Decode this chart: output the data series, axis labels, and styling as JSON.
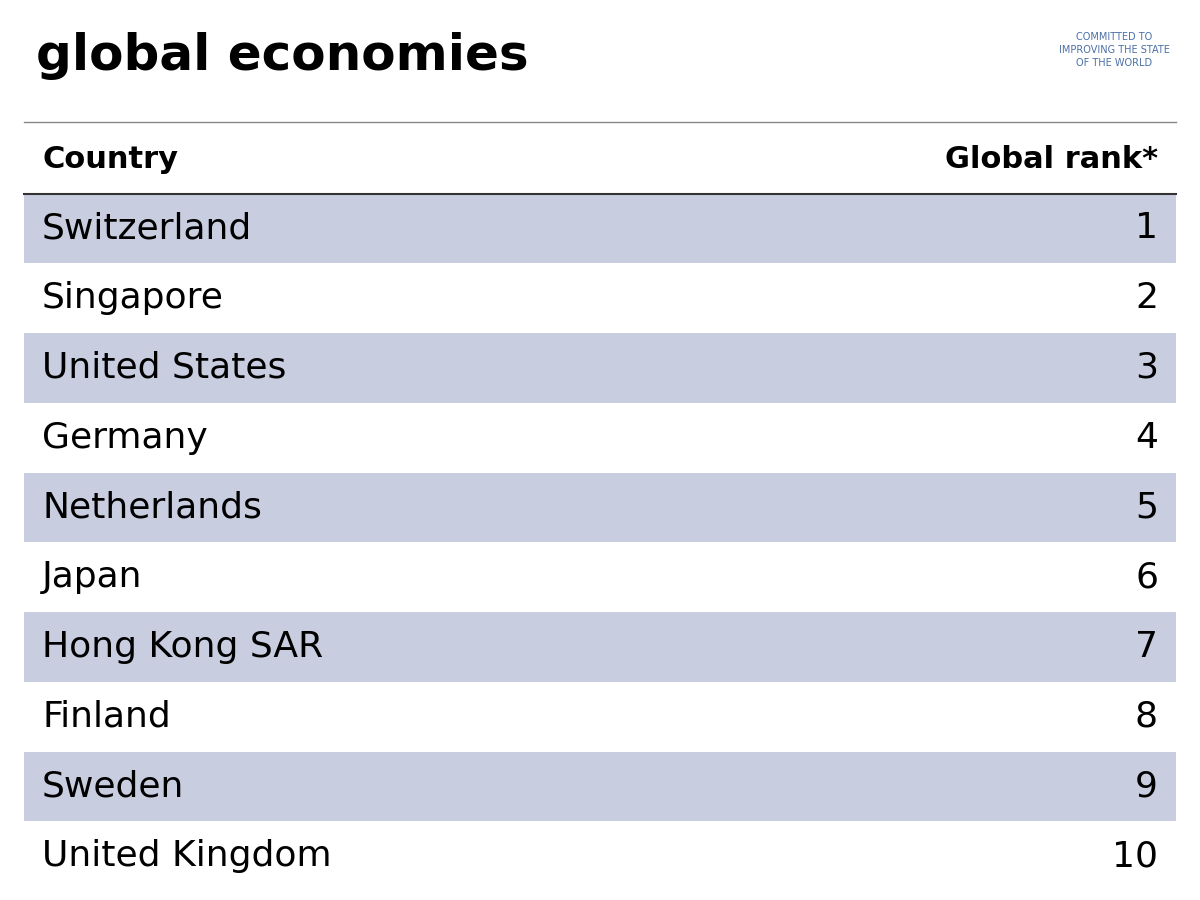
{
  "title_line1": "global economies",
  "header_country": "Country",
  "header_rank": "Global rank*",
  "wef_text": "COMMITTED TO\nIMPROVING THE STATE\nOF THE WORLD",
  "countries": [
    "Switzerland",
    "Singapore",
    "United States",
    "Germany",
    "Netherlands",
    "Japan",
    "Hong Kong SAR",
    "Finland",
    "Sweden",
    "United Kingdom"
  ],
  "ranks": [
    1,
    2,
    3,
    4,
    5,
    6,
    7,
    8,
    9,
    10
  ],
  "row_colors_odd": "#c8cde0",
  "row_colors_even": "#ffffff",
  "title_color": "#000000",
  "header_text_color": "#000000",
  "row_text_color": "#000000",
  "wef_color": "#4a6fa5",
  "separator_line_color": "#888888",
  "header_line_color": "#333333",
  "title_fontsize": 36,
  "header_fontsize": 22,
  "row_fontsize": 26,
  "wef_fontsize": 7,
  "bg_color": "#ffffff"
}
